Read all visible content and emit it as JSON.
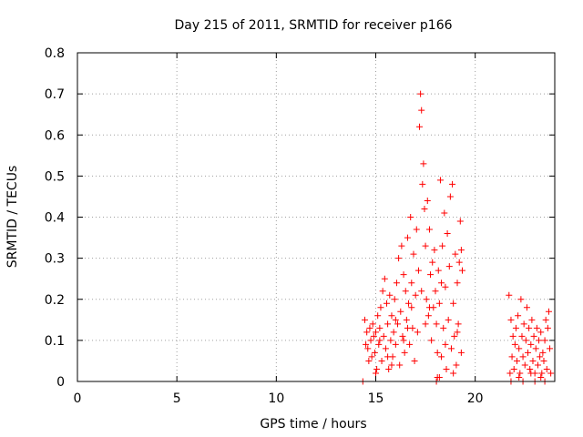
{
  "chart_data": {
    "type": "scatter",
    "title": "Day 215 of 2011, SRMTID for receiver p166",
    "xlabel": "GPS time / hours",
    "ylabel": "SRMTID / TECUs",
    "xlim": [
      0,
      24
    ],
    "ylim": [
      0,
      0.8
    ],
    "xticks": [
      0,
      5,
      10,
      15,
      20
    ],
    "xtick_labels": [
      "0",
      "5",
      "10",
      "15",
      "20"
    ],
    "yticks": [
      0,
      0.1,
      0.2,
      0.3,
      0.4,
      0.5,
      0.6,
      0.7,
      0.8
    ],
    "ytick_labels": [
      "0",
      "0.1",
      "0.2",
      "0.3",
      "0.4",
      "0.5",
      "0.6",
      "0.7",
      "0.8"
    ],
    "grid": true,
    "marker": "+",
    "color": "#ff0000",
    "series": [
      {
        "name": "SRMTID",
        "points": [
          [
            14.45,
            0.15
          ],
          [
            14.5,
            0.09
          ],
          [
            14.55,
            0.12
          ],
          [
            14.6,
            0.08
          ],
          [
            14.65,
            0.05
          ],
          [
            14.7,
            0.13
          ],
          [
            14.75,
            0.1
          ],
          [
            14.8,
            0.06
          ],
          [
            14.85,
            0.14
          ],
          [
            14.9,
            0.11
          ],
          [
            14.95,
            0.07
          ],
          [
            15.0,
            0.12
          ],
          [
            15.05,
            0.03
          ],
          [
            15.1,
            0.16
          ],
          [
            15.15,
            0.09
          ],
          [
            15.2,
            0.13
          ],
          [
            15.25,
            0.18
          ],
          [
            15.3,
            0.05
          ],
          [
            15.35,
            0.22
          ],
          [
            15.4,
            0.11
          ],
          [
            15.45,
            0.25
          ],
          [
            15.5,
            0.08
          ],
          [
            15.55,
            0.19
          ],
          [
            15.6,
            0.14
          ],
          [
            15.65,
            0.03
          ],
          [
            15.7,
            0.21
          ],
          [
            15.75,
            0.1
          ],
          [
            15.8,
            0.16
          ],
          [
            15.85,
            0.06
          ],
          [
            15.9,
            0.12
          ],
          [
            15.95,
            0.2
          ],
          [
            16.0,
            0.09
          ],
          [
            16.05,
            0.24
          ],
          [
            16.1,
            0.14
          ],
          [
            16.15,
            0.3
          ],
          [
            16.2,
            0.04
          ],
          [
            16.25,
            0.17
          ],
          [
            16.3,
            0.33
          ],
          [
            16.35,
            0.11
          ],
          [
            16.4,
            0.26
          ],
          [
            16.45,
            0.07
          ],
          [
            16.5,
            0.22
          ],
          [
            16.55,
            0.15
          ],
          [
            16.6,
            0.35
          ],
          [
            16.65,
            0.19
          ],
          [
            16.7,
            0.09
          ],
          [
            16.75,
            0.4
          ],
          [
            16.8,
            0.24
          ],
          [
            16.85,
            0.13
          ],
          [
            16.9,
            0.31
          ],
          [
            16.95,
            0.05
          ],
          [
            17.0,
            0.21
          ],
          [
            17.05,
            0.37
          ],
          [
            17.1,
            0.12
          ],
          [
            17.15,
            0.27
          ],
          [
            17.2,
            0.62
          ],
          [
            17.25,
            0.7
          ],
          [
            17.3,
            0.66
          ],
          [
            17.35,
            0.48
          ],
          [
            17.4,
            0.53
          ],
          [
            17.45,
            0.42
          ],
          [
            17.5,
            0.33
          ],
          [
            17.55,
            0.2
          ],
          [
            17.6,
            0.44
          ],
          [
            17.65,
            0.16
          ],
          [
            17.7,
            0.37
          ],
          [
            17.75,
            0.26
          ],
          [
            17.8,
            0.1
          ],
          [
            17.85,
            0.29
          ],
          [
            17.9,
            0.18
          ],
          [
            17.95,
            0.32
          ],
          [
            18.0,
            0.22
          ],
          [
            18.05,
            0.14
          ],
          [
            18.1,
            0.01
          ],
          [
            18.15,
            0.27
          ],
          [
            18.2,
            0.19
          ],
          [
            18.25,
            0.49
          ],
          [
            18.3,
            0.06
          ],
          [
            18.35,
            0.33
          ],
          [
            18.4,
            0.13
          ],
          [
            18.45,
            0.41
          ],
          [
            18.5,
            0.23
          ],
          [
            18.55,
            0.03
          ],
          [
            18.6,
            0.36
          ],
          [
            18.65,
            0.15
          ],
          [
            18.7,
            0.28
          ],
          [
            18.75,
            0.45
          ],
          [
            18.8,
            0.08
          ],
          [
            18.85,
            0.48
          ],
          [
            18.9,
            0.19
          ],
          [
            18.95,
            0.11
          ],
          [
            19.0,
            0.31
          ],
          [
            19.05,
            0.04
          ],
          [
            19.1,
            0.24
          ],
          [
            19.15,
            0.14
          ],
          [
            19.2,
            0.29
          ],
          [
            19.25,
            0.39
          ],
          [
            19.3,
            0.32
          ],
          [
            19.35,
            0.27
          ],
          [
            15.2,
            0.1
          ],
          [
            15.6,
            0.06
          ],
          [
            16.0,
            0.15
          ],
          [
            16.4,
            0.1
          ],
          [
            16.8,
            0.18
          ],
          [
            17.3,
            0.22
          ],
          [
            17.7,
            0.18
          ],
          [
            18.1,
            0.07
          ],
          [
            18.5,
            0.09
          ],
          [
            18.9,
            0.02
          ],
          [
            19.3,
            0.07
          ],
          [
            15.0,
            0.02
          ],
          [
            15.8,
            0.04
          ],
          [
            16.6,
            0.13
          ],
          [
            17.5,
            0.14
          ],
          [
            18.3,
            0.24
          ],
          [
            19.1,
            0.12
          ],
          [
            14.35,
            0.0
          ],
          [
            18.05,
            0.0
          ],
          [
            18.2,
            0.01
          ],
          [
            21.7,
            0.21
          ],
          [
            21.75,
            0.02
          ],
          [
            21.8,
            0.15
          ],
          [
            21.85,
            0.06
          ],
          [
            21.9,
            0.11
          ],
          [
            21.95,
            0.03
          ],
          [
            22.0,
            0.09
          ],
          [
            22.05,
            0.13
          ],
          [
            22.1,
            0.05
          ],
          [
            22.15,
            0.16
          ],
          [
            22.2,
            0.08
          ],
          [
            22.25,
            0.02
          ],
          [
            22.3,
            0.2
          ],
          [
            22.35,
            0.11
          ],
          [
            22.4,
            0.06
          ],
          [
            22.45,
            0.14
          ],
          [
            22.5,
            0.04
          ],
          [
            22.55,
            0.1
          ],
          [
            22.6,
            0.18
          ],
          [
            22.65,
            0.07
          ],
          [
            22.7,
            0.13
          ],
          [
            22.75,
            0.03
          ],
          [
            22.8,
            0.09
          ],
          [
            22.85,
            0.15
          ],
          [
            22.9,
            0.05
          ],
          [
            22.95,
            0.11
          ],
          [
            23.0,
            0.02
          ],
          [
            23.05,
            0.08
          ],
          [
            23.1,
            0.13
          ],
          [
            23.15,
            0.04
          ],
          [
            23.2,
            0.1
          ],
          [
            23.25,
            0.06
          ],
          [
            23.3,
            0.12
          ],
          [
            23.35,
            0.02
          ],
          [
            23.4,
            0.07
          ],
          [
            23.45,
            0.05
          ],
          [
            23.5,
            0.1
          ],
          [
            23.55,
            0.15
          ],
          [
            23.6,
            0.03
          ],
          [
            23.65,
            0.13
          ],
          [
            23.7,
            0.17
          ],
          [
            23.75,
            0.08
          ],
          [
            23.8,
            0.02
          ],
          [
            21.8,
            0.0
          ],
          [
            22.4,
            0.0
          ],
          [
            23.0,
            0.0
          ],
          [
            23.5,
            0.0
          ],
          [
            22.2,
            0.01
          ],
          [
            22.8,
            0.02
          ],
          [
            23.3,
            0.01
          ]
        ]
      }
    ]
  }
}
